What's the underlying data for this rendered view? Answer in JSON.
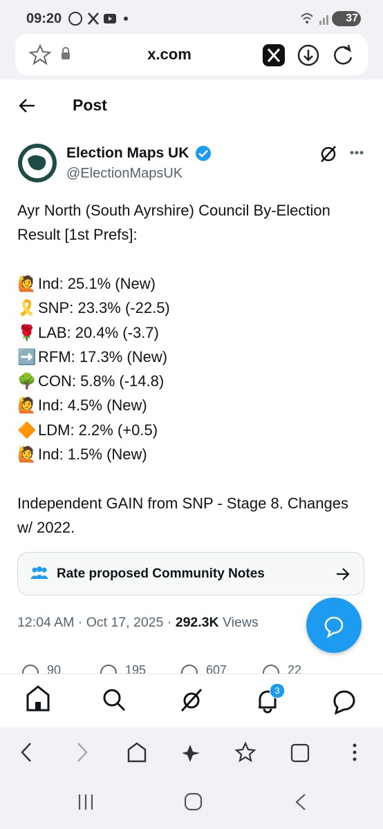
{
  "status_bar": {
    "time": "09:20",
    "battery": "37"
  },
  "browser": {
    "url": "x.com"
  },
  "header": {
    "title": "Post"
  },
  "post": {
    "author_name": "Election Maps UK",
    "handle": "@ElectionMapsUK",
    "intro": "Ayr North (South Ayrshire) Council By-Election Result [1st Prefs]:",
    "results": [
      {
        "emoji": "🙋",
        "text": "Ind: 25.1% (New)"
      },
      {
        "emoji": "🎗️",
        "text": "SNP: 23.3% (-22.5)"
      },
      {
        "emoji": "🌹",
        "text": "LAB: 20.4% (-3.7)"
      },
      {
        "emoji": "➡️",
        "text": "RFM: 17.3% (New)"
      },
      {
        "emoji": "🌳",
        "text": "CON: 5.8% (-14.8)"
      },
      {
        "emoji": "🙋",
        "text": "Ind: 4.5% (New)"
      },
      {
        "emoji": "🔶",
        "text": "LDM: 2.2% (+0.5)"
      },
      {
        "emoji": "🙋",
        "text": "Ind: 1.5% (New)"
      }
    ],
    "outro": "Independent GAIN from SNP - Stage 8. Changes w/ 2022.",
    "community_notes": "Rate proposed Community Notes",
    "timestamp": "12:04 AM · Oct 17, 2025 ·",
    "views_count": "292.3K",
    "views_label": "Views",
    "actions": [
      "90",
      "195",
      "607",
      "22"
    ]
  },
  "tab_bar": {
    "notifications_badge": "3"
  }
}
